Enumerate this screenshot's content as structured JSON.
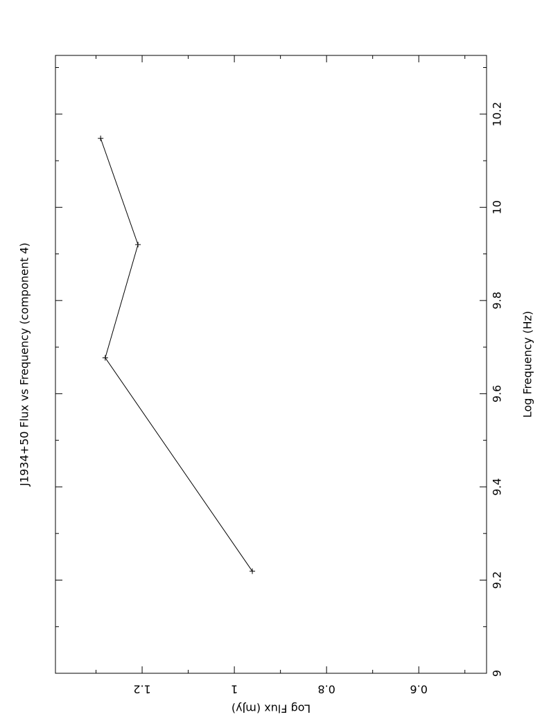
{
  "chart_data": {
    "type": "line",
    "title": "J1934+50 Flux vs Frequency (component 4)",
    "x_label": "Log Frequency (Hz)",
    "y_label": "Log Flux (mJy)",
    "x": [
      9.219,
      9.677,
      9.92,
      10.148
    ],
    "series": [
      {
        "color": "#000000",
        "values": [
          0.961,
          1.28,
          1.209,
          1.29
        ]
      }
    ],
    "xlim": [
      9,
      10.326
    ],
    "xticks": [
      9,
      9.2,
      9.4,
      9.6,
      9.8,
      10,
      10.2
    ],
    "xminorticks": [
      9.1,
      9.3,
      9.5,
      9.7,
      9.9,
      10.1,
      10.3
    ],
    "ylim": [
      0.453,
      1.388
    ],
    "yticks": [
      0.6,
      0.8,
      1,
      1.2
    ],
    "yminorticks": [
      0.5,
      0.7,
      0.9,
      1.1,
      1.3
    ]
  }
}
